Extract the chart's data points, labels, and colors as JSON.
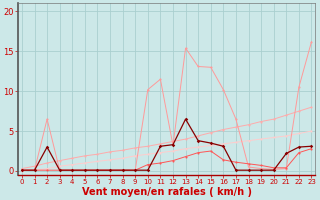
{
  "bg_color": "#cce8e8",
  "grid_color": "#aacfcf",
  "xlabel": "Vent moyen/en rafales ( km/h )",
  "xlabel_color": "#cc0000",
  "xlabel_fontsize": 7,
  "yticks": [
    0,
    5,
    10,
    15,
    20
  ],
  "xticks": [
    0,
    1,
    2,
    3,
    4,
    5,
    6,
    7,
    8,
    9,
    10,
    11,
    12,
    13,
    14,
    15,
    16,
    17,
    18,
    19,
    20,
    21,
    22,
    23
  ],
  "xlim": [
    -0.3,
    23.3
  ],
  "ylim": [
    -0.5,
    21
  ],
  "line1_x": [
    0,
    1,
    2,
    3,
    4,
    5,
    6,
    7,
    8,
    9,
    10,
    11,
    12,
    13,
    14,
    15,
    16,
    17,
    18,
    19,
    20,
    21,
    22,
    23
  ],
  "line1_y": [
    0.1,
    0.1,
    6.5,
    0.1,
    0.1,
    0.1,
    0.1,
    0.1,
    0.1,
    0.1,
    10.2,
    11.5,
    3.2,
    15.4,
    13.1,
    13.0,
    10.2,
    6.5,
    0.5,
    0.3,
    0.2,
    0.3,
    10.5,
    16.2
  ],
  "line1_color": "#ff9999",
  "line2_x": [
    0,
    1,
    2,
    3,
    4,
    5,
    6,
    7,
    8,
    9,
    10,
    11,
    12,
    13,
    14,
    15,
    16,
    17,
    18,
    19,
    20,
    21,
    22,
    23
  ],
  "line2_y": [
    0.1,
    0.1,
    3.0,
    0.1,
    0.1,
    0.1,
    0.1,
    0.1,
    0.1,
    0.1,
    0.1,
    3.1,
    3.3,
    6.5,
    3.8,
    3.5,
    3.1,
    0.1,
    0.1,
    0.1,
    0.1,
    2.2,
    3.0,
    3.1
  ],
  "line2_color": "#880000",
  "line3_x": [
    0,
    1,
    2,
    3,
    4,
    5,
    6,
    7,
    8,
    9,
    10,
    11,
    12,
    13,
    14,
    15,
    16,
    17,
    18,
    19,
    20,
    21,
    22,
    23
  ],
  "line3_y": [
    0.1,
    0.1,
    0.1,
    0.1,
    0.1,
    0.1,
    0.1,
    0.1,
    0.1,
    0.1,
    0.8,
    1.0,
    1.3,
    1.8,
    2.3,
    2.5,
    1.4,
    1.1,
    0.9,
    0.7,
    0.4,
    0.4,
    2.3,
    2.8
  ],
  "line3_color": "#ff5555",
  "line4_x": [
    0,
    1,
    2,
    3,
    4,
    5,
    6,
    7,
    8,
    9,
    10,
    11,
    12,
    13,
    14,
    15,
    16,
    17,
    18,
    19,
    20,
    21,
    22,
    23
  ],
  "line4_y": [
    0.3,
    0.6,
    1.0,
    1.3,
    1.6,
    1.9,
    2.1,
    2.4,
    2.6,
    2.9,
    3.1,
    3.4,
    3.7,
    4.0,
    4.4,
    4.8,
    5.2,
    5.5,
    5.8,
    6.2,
    6.5,
    7.0,
    7.5,
    8.0
  ],
  "line4_color": "#ffaaaa",
  "line5_x": [
    0,
    1,
    2,
    3,
    4,
    5,
    6,
    7,
    8,
    9,
    10,
    11,
    12,
    13,
    14,
    15,
    16,
    17,
    18,
    19,
    20,
    21,
    22,
    23
  ],
  "line5_y": [
    0.0,
    0.1,
    0.3,
    0.6,
    0.8,
    1.0,
    1.2,
    1.4,
    1.6,
    1.9,
    2.1,
    2.3,
    2.5,
    2.8,
    3.0,
    3.2,
    3.4,
    3.6,
    3.8,
    4.0,
    4.2,
    4.4,
    4.7,
    5.0
  ],
  "line5_color": "#ffcccc",
  "tick_fontsize": 5,
  "ytick_fontsize": 6,
  "tick_color": "#cc0000",
  "marker_size": 1.5,
  "lw_thin": 0.7,
  "lw_thick": 0.9
}
